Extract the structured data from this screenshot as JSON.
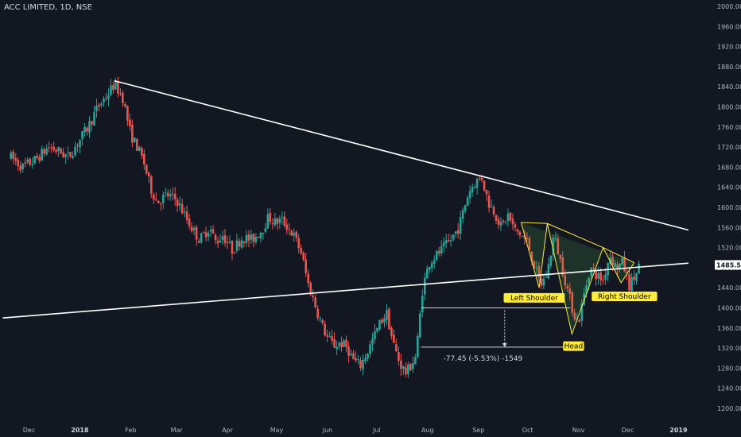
{
  "header": {
    "symbol_label": "ACC LIMITED, 1D, NSE"
  },
  "colors": {
    "up": "#26a69a",
    "down": "#ef5350",
    "line": "#ffffff",
    "pattern": "#ffeb3b",
    "bg": "#131722"
  },
  "chart_data": {
    "type": "candlestick",
    "title": "ACC LIMITED, 1D, NSE",
    "yticks": [
      1200,
      1240,
      1280,
      1320,
      1360,
      1400,
      1440,
      1480,
      1520,
      1560,
      1600,
      1640,
      1680,
      1720,
      1760,
      1800,
      1840,
      1880,
      1920,
      1960,
      2000
    ],
    "xticks": [
      {
        "label": "Dec",
        "day": -24,
        "bold": false
      },
      {
        "label": "2018",
        "day": 7,
        "bold": true
      },
      {
        "label": "Feb",
        "day": 38,
        "bold": false
      },
      {
        "label": "Mar",
        "day": 66,
        "bold": false
      },
      {
        "label": "Apr",
        "day": 97,
        "bold": false
      },
      {
        "label": "May",
        "day": 127,
        "bold": false
      },
      {
        "label": "Jun",
        "day": 158,
        "bold": false
      },
      {
        "label": "Jul",
        "day": 188,
        "bold": false
      },
      {
        "label": "Aug",
        "day": 219,
        "bold": false
      },
      {
        "label": "Sep",
        "day": 250,
        "bold": false
      },
      {
        "label": "Oct",
        "day": 280,
        "bold": false
      },
      {
        "label": "Nov",
        "day": 311,
        "bold": false
      },
      {
        "label": "Dec",
        "day": 341,
        "bold": false
      },
      {
        "label": "2019",
        "day": 372,
        "bold": true
      }
    ],
    "last_price": "1485.50",
    "path": [
      [
        -35,
        1700
      ],
      [
        -28,
        1680
      ],
      [
        -20,
        1695
      ],
      [
        -12,
        1720
      ],
      [
        -5,
        1710
      ],
      [
        0,
        1700
      ],
      [
        6,
        1730
      ],
      [
        12,
        1760
      ],
      [
        18,
        1800
      ],
      [
        24,
        1825
      ],
      [
        28,
        1845
      ],
      [
        33,
        1820
      ],
      [
        38,
        1745
      ],
      [
        42,
        1720
      ],
      [
        46,
        1690
      ],
      [
        50,
        1640
      ],
      [
        54,
        1610
      ],
      [
        60,
        1625
      ],
      [
        66,
        1615
      ],
      [
        70,
        1590
      ],
      [
        75,
        1560
      ],
      [
        80,
        1535
      ],
      [
        86,
        1560
      ],
      [
        90,
        1530
      ],
      [
        94,
        1545
      ],
      [
        100,
        1515
      ],
      [
        106,
        1540
      ],
      [
        112,
        1535
      ],
      [
        118,
        1555
      ],
      [
        122,
        1580
      ],
      [
        126,
        1570
      ],
      [
        130,
        1575
      ],
      [
        134,
        1560
      ],
      [
        138,
        1540
      ],
      [
        142,
        1510
      ],
      [
        146,
        1450
      ],
      [
        150,
        1410
      ],
      [
        154,
        1370
      ],
      [
        158,
        1340
      ],
      [
        162,
        1325
      ],
      [
        166,
        1330
      ],
      [
        170,
        1320
      ],
      [
        174,
        1295
      ],
      [
        178,
        1285
      ],
      [
        182,
        1310
      ],
      [
        186,
        1340
      ],
      [
        190,
        1370
      ],
      [
        194,
        1390
      ],
      [
        198,
        1330
      ],
      [
        202,
        1290
      ],
      [
        206,
        1270
      ],
      [
        212,
        1305
      ],
      [
        216,
        1440
      ],
      [
        220,
        1490
      ],
      [
        226,
        1510
      ],
      [
        232,
        1530
      ],
      [
        238,
        1560
      ],
      [
        244,
        1630
      ],
      [
        248,
        1650
      ],
      [
        252,
        1660
      ],
      [
        256,
        1610
      ],
      [
        260,
        1590
      ],
      [
        264,
        1560
      ],
      [
        268,
        1585
      ],
      [
        272,
        1555
      ],
      [
        276,
        1545
      ],
      [
        280,
        1530
      ],
      [
        284,
        1485
      ],
      [
        288,
        1445
      ],
      [
        292,
        1470
      ],
      [
        296,
        1545
      ],
      [
        298,
        1520
      ],
      [
        301,
        1480
      ],
      [
        304,
        1440
      ],
      [
        308,
        1390
      ],
      [
        311,
        1370
      ],
      [
        314,
        1420
      ],
      [
        318,
        1480
      ],
      [
        322,
        1465
      ],
      [
        326,
        1455
      ],
      [
        330,
        1505
      ],
      [
        334,
        1480
      ],
      [
        338,
        1490
      ],
      [
        342,
        1445
      ],
      [
        346,
        1465
      ],
      [
        348,
        1485
      ]
    ],
    "lines": [
      {
        "name": "trend-line-upper",
        "from": {
          "day": 28,
          "price": 1852
        },
        "to": {
          "day": 378,
          "price": 1555
        }
      },
      {
        "name": "trend-line-lower",
        "from": {
          "day": -40,
          "price": 1380
        },
        "to": {
          "day": 378,
          "price": 1489
        }
      }
    ],
    "pattern_points": [
      {
        "day": 276,
        "price": 1570
      },
      {
        "day": 287,
        "price": 1440
      },
      {
        "day": 292,
        "price": 1568
      },
      {
        "day": 307,
        "price": 1348
      },
      {
        "day": 326,
        "price": 1520
      },
      {
        "day": 337,
        "price": 1450
      },
      {
        "day": 345,
        "price": 1490
      }
    ],
    "measure": {
      "top_price": 1400,
      "bottom_price": 1322,
      "start_day": 215,
      "end_day": 306,
      "arrow_day": 266,
      "label": "-77.45 (-5.53%) -1549"
    },
    "labels": [
      {
        "name": "left-shoulder-label",
        "text": "Left Shoulder",
        "day": 284,
        "price": 1420
      },
      {
        "name": "head-label",
        "text": "Head",
        "day": 308,
        "price": 1324
      },
      {
        "name": "right-shoulder-label",
        "text": "Right Shoulder",
        "day": 339,
        "price": 1423
      }
    ]
  }
}
